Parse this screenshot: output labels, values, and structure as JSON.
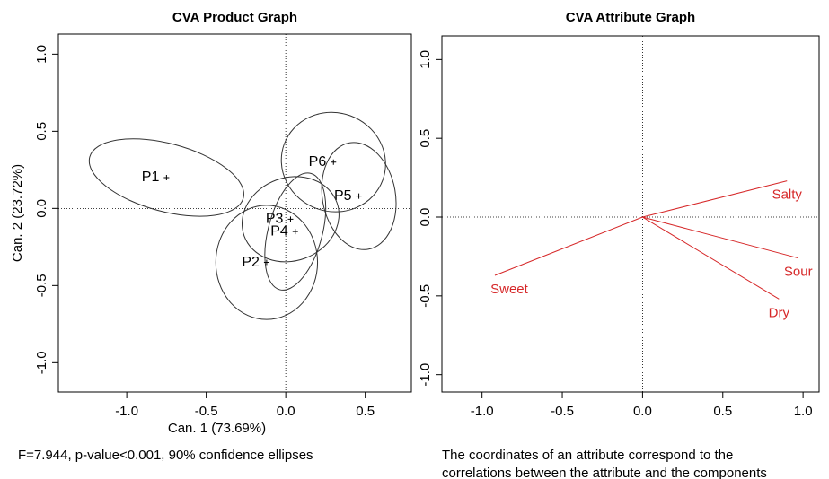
{
  "chart_data": [
    {
      "type": "scatter",
      "title": "CVA Product Graph",
      "x_label": "Can. 1 (73.69%)",
      "y_label": "Can. 2 (23.72%)",
      "annotation": "F=7.944, p-value<0.001, 90% confidence ellipses",
      "labels": [
        "P1",
        "P6",
        "P5",
        "P3",
        "P4",
        "P2"
      ],
      "x": [
        -0.75,
        0.3,
        0.46,
        0.03,
        0.06,
        -0.12
      ],
      "values": [
        0.2,
        0.3,
        0.08,
        -0.07,
        -0.15,
        -0.35
      ],
      "ellipse_rx": [
        0.5,
        0.33,
        0.23,
        0.31,
        0.17,
        0.32
      ],
      "ellipse_ry": [
        0.22,
        0.32,
        0.35,
        0.27,
        0.39,
        0.37
      ],
      "ellipse_angle": [
        15,
        20,
        -10,
        -20,
        15,
        0
      ],
      "color": "#000000",
      "xlim": [
        -1.43,
        0.79
      ],
      "ylim": [
        -1.19,
        1.13
      ],
      "xticks": [
        {
          "value": -1.0,
          "label": "-1.0"
        },
        {
          "value": -0.5,
          "label": "-0.5"
        },
        {
          "value": 0.0,
          "label": "0.0"
        },
        {
          "value": 0.5,
          "label": "0.5"
        }
      ],
      "yticks": [
        {
          "value": -1.0,
          "label": "-1.0"
        },
        {
          "value": -0.5,
          "label": "-0.5"
        },
        {
          "value": 0.0,
          "label": "0.0"
        },
        {
          "value": 0.5,
          "label": "0.5"
        },
        {
          "value": 1.0,
          "label": "1.0"
        }
      ]
    },
    {
      "type": "vector",
      "title": "CVA Attribute Graph",
      "annotation": [
        "The coordinates of an attribute correspond to the",
        "correlations between the attribute and the components"
      ],
      "labels": [
        "Salty",
        "Sour",
        "Dry",
        "Sweet"
      ],
      "x": [
        0.9,
        0.97,
        0.85,
        -0.92
      ],
      "values": [
        0.23,
        -0.26,
        -0.52,
        -0.37
      ],
      "color": "#d62728",
      "xlim": [
        -1.25,
        1.1
      ],
      "ylim": [
        -1.11,
        1.15
      ],
      "xticks": [
        {
          "value": -1.0,
          "label": "-1.0"
        },
        {
          "value": -0.5,
          "label": "-0.5"
        },
        {
          "value": 0.0,
          "label": "0.0"
        },
        {
          "value": 0.5,
          "label": "0.5"
        },
        {
          "value": 1.0,
          "label": "1.0"
        }
      ],
      "yticks": [
        {
          "value": -1.0,
          "label": "-1.0"
        },
        {
          "value": -0.5,
          "label": "-0.5"
        },
        {
          "value": 0.0,
          "label": "0.0"
        },
        {
          "value": 0.5,
          "label": "0.5"
        },
        {
          "value": 1.0,
          "label": "1.0"
        }
      ]
    }
  ]
}
